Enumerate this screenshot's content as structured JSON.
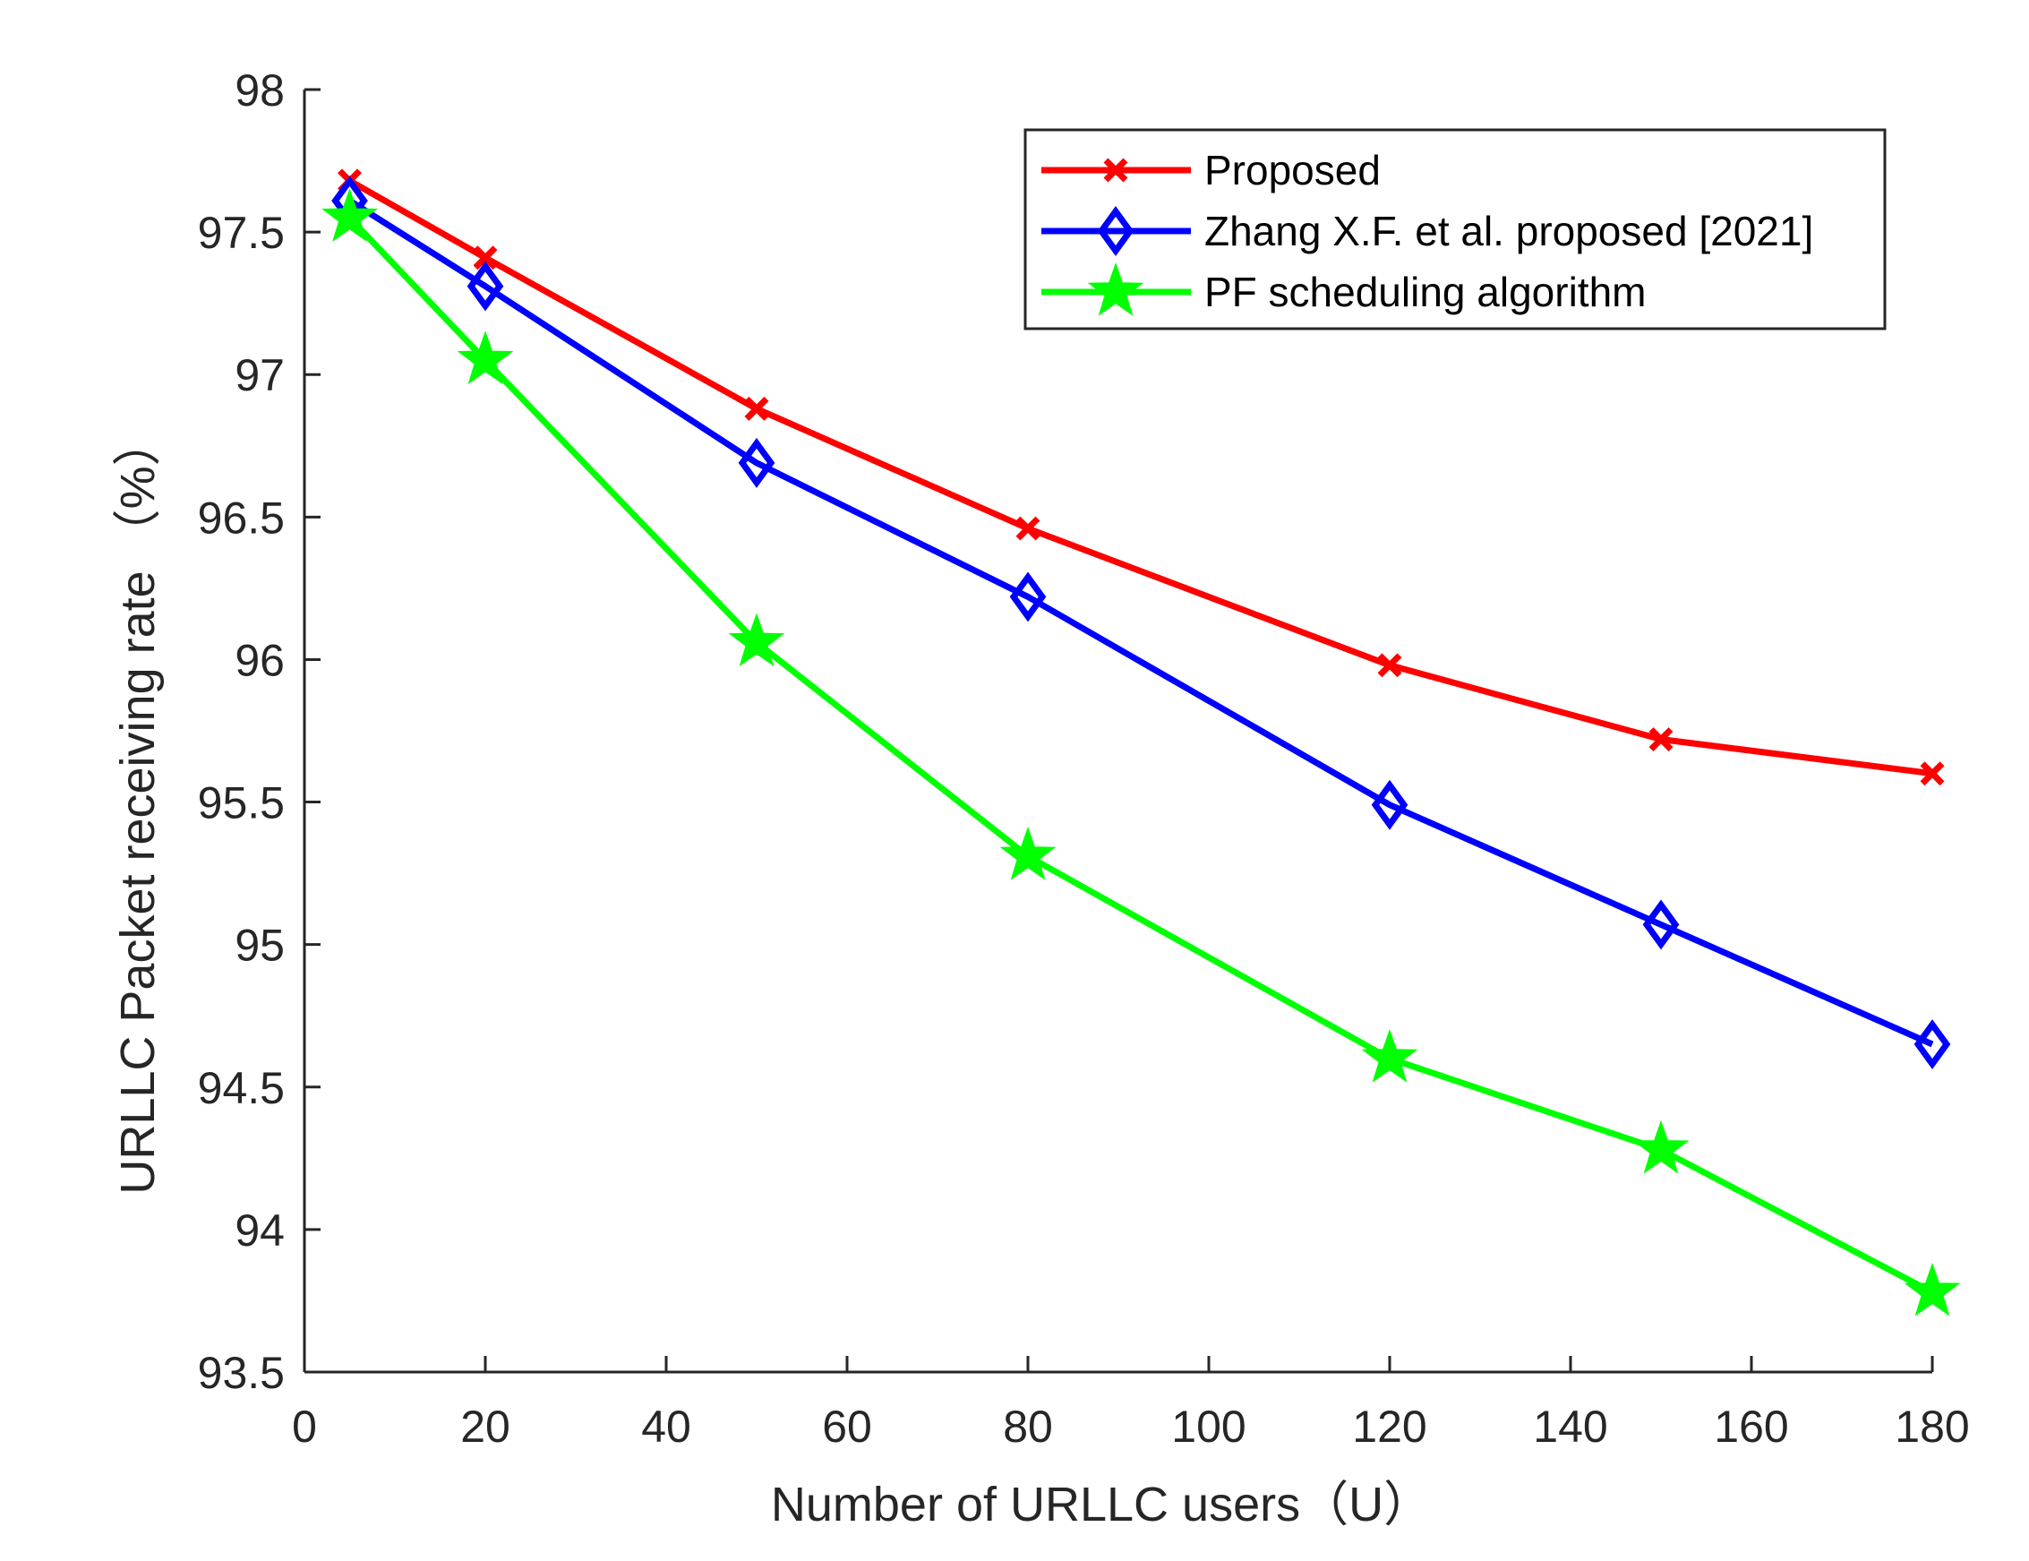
{
  "chart_data": {
    "type": "line",
    "title": "",
    "xlabel": "Number of URLLC users（U）",
    "ylabel": "URLLC Packet receiving rate （%）",
    "xlim": [
      0,
      180
    ],
    "ylim": [
      93.5,
      98
    ],
    "xticks": [
      0,
      20,
      40,
      60,
      80,
      100,
      120,
      140,
      160,
      180
    ],
    "xtick_labels": [
      "0",
      "20",
      "40",
      "60",
      "80",
      "100",
      "120",
      "140",
      "160",
      "180"
    ],
    "yticks": [
      93.5,
      94,
      94.5,
      95,
      95.5,
      96,
      96.5,
      97,
      97.5,
      98
    ],
    "ytick_labels": [
      "93.5",
      "94",
      "94.5",
      "95",
      "95.5",
      "96",
      "96.5",
      "97",
      "97.5",
      "98"
    ],
    "x": [
      5,
      20,
      50,
      80,
      120,
      150,
      180
    ],
    "grid": false,
    "legend_position": "top-right",
    "series": [
      {
        "name": "Proposed",
        "color": "#ff0000",
        "marker": "x",
        "values": [
          97.68,
          97.41,
          96.88,
          96.46,
          95.98,
          95.72,
          95.6
        ]
      },
      {
        "name": "Zhang X.F. et al. proposed [2021]",
        "color": "#0000ff",
        "marker": "diamond",
        "values": [
          97.61,
          97.31,
          96.69,
          96.22,
          95.49,
          95.07,
          94.65
        ]
      },
      {
        "name": "PF scheduling algorithm",
        "color": "#00ff00",
        "marker": "star",
        "values": [
          97.55,
          97.05,
          96.06,
          95.31,
          94.6,
          94.28,
          93.78
        ]
      }
    ]
  }
}
